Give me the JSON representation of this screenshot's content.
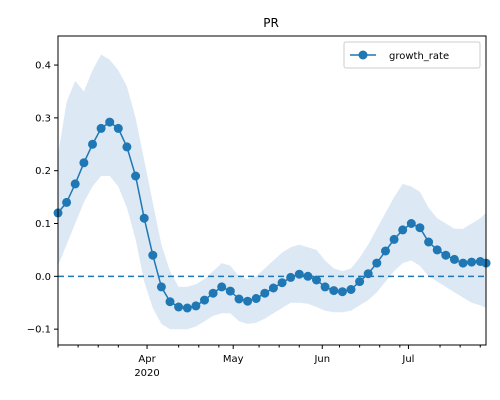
{
  "chart_data": {
    "type": "line",
    "title": "PR",
    "xlabel": "",
    "ylabel": "",
    "x_range": [
      "2020-03-01",
      "2020-07-28"
    ],
    "ylim": [
      -0.13,
      0.455
    ],
    "y_ticks": [
      -0.1,
      0.0,
      0.1,
      0.2,
      0.3,
      0.4
    ],
    "y_tick_labels": [
      "−0.1",
      "0.0",
      "0.1",
      "0.2",
      "0.3",
      "0.4"
    ],
    "x_major_ticks": [
      {
        "date": "2020-04-01",
        "label": "Apr",
        "sublabel": "2020"
      },
      {
        "date": "2020-05-01",
        "label": "May",
        "sublabel": ""
      },
      {
        "date": "2020-06-01",
        "label": "Jun",
        "sublabel": ""
      },
      {
        "date": "2020-07-01",
        "label": "Jul",
        "sublabel": ""
      }
    ],
    "x_minor_ticks": [
      "2020-03-01",
      "2020-03-08",
      "2020-03-15",
      "2020-03-22",
      "2020-04-12",
      "2020-04-19",
      "2020-04-26",
      "2020-05-10",
      "2020-05-17",
      "2020-05-24",
      "2020-06-07",
      "2020-06-14",
      "2020-06-21",
      "2020-06-28",
      "2020-07-12",
      "2020-07-19",
      "2020-07-26"
    ],
    "grid": false,
    "legend_position": "top-right",
    "reference_line": {
      "y": 0.0,
      "style": "dashed",
      "color": "#1f77b4"
    },
    "series": [
      {
        "name": "growth_rate",
        "color": "#1f77b4",
        "band_color": "#dce9f5",
        "marker": "circle",
        "x": [
          "2020-03-01",
          "2020-03-04",
          "2020-03-07",
          "2020-03-10",
          "2020-03-13",
          "2020-03-16",
          "2020-03-19",
          "2020-03-22",
          "2020-03-25",
          "2020-03-28",
          "2020-03-31",
          "2020-04-03",
          "2020-04-06",
          "2020-04-09",
          "2020-04-12",
          "2020-04-15",
          "2020-04-18",
          "2020-04-21",
          "2020-04-24",
          "2020-04-27",
          "2020-04-30",
          "2020-05-03",
          "2020-05-06",
          "2020-05-09",
          "2020-05-12",
          "2020-05-15",
          "2020-05-18",
          "2020-05-21",
          "2020-05-24",
          "2020-05-27",
          "2020-05-30",
          "2020-06-02",
          "2020-06-05",
          "2020-06-08",
          "2020-06-11",
          "2020-06-14",
          "2020-06-17",
          "2020-06-20",
          "2020-06-23",
          "2020-06-26",
          "2020-06-29",
          "2020-07-02",
          "2020-07-05",
          "2020-07-08",
          "2020-07-11",
          "2020-07-14",
          "2020-07-17",
          "2020-07-20",
          "2020-07-23",
          "2020-07-26",
          "2020-07-28"
        ],
        "y": [
          0.12,
          0.14,
          0.175,
          0.215,
          0.25,
          0.28,
          0.292,
          0.28,
          0.245,
          0.19,
          0.11,
          0.04,
          -0.02,
          -0.048,
          -0.058,
          -0.06,
          -0.056,
          -0.045,
          -0.032,
          -0.02,
          -0.028,
          -0.043,
          -0.047,
          -0.042,
          -0.032,
          -0.022,
          -0.012,
          -0.002,
          0.004,
          0.0,
          -0.007,
          -0.02,
          -0.027,
          -0.029,
          -0.025,
          -0.01,
          0.005,
          0.025,
          0.048,
          0.07,
          0.088,
          0.1,
          0.092,
          0.065,
          0.05,
          0.04,
          0.032,
          0.025,
          0.027,
          0.028,
          0.025
        ],
        "lower": [
          0.02,
          0.06,
          0.1,
          0.14,
          0.17,
          0.19,
          0.19,
          0.17,
          0.13,
          0.07,
          -0.01,
          -0.06,
          -0.09,
          -0.1,
          -0.1,
          -0.1,
          -0.095,
          -0.085,
          -0.075,
          -0.07,
          -0.07,
          -0.085,
          -0.09,
          -0.088,
          -0.08,
          -0.07,
          -0.06,
          -0.05,
          -0.05,
          -0.052,
          -0.058,
          -0.065,
          -0.068,
          -0.068,
          -0.065,
          -0.055,
          -0.045,
          -0.03,
          -0.01,
          0.01,
          0.025,
          0.03,
          0.02,
          0.0,
          -0.01,
          -0.02,
          -0.03,
          -0.04,
          -0.05,
          -0.055,
          -0.06
        ],
        "upper": [
          0.23,
          0.33,
          0.37,
          0.35,
          0.39,
          0.42,
          0.41,
          0.39,
          0.36,
          0.3,
          0.22,
          0.14,
          0.06,
          0.01,
          -0.02,
          -0.02,
          -0.015,
          -0.005,
          0.01,
          0.025,
          0.02,
          0.0,
          -0.005,
          0.0,
          0.015,
          0.03,
          0.045,
          0.055,
          0.06,
          0.055,
          0.05,
          0.03,
          0.015,
          0.01,
          0.015,
          0.035,
          0.06,
          0.09,
          0.12,
          0.15,
          0.175,
          0.17,
          0.16,
          0.13,
          0.11,
          0.1,
          0.09,
          0.09,
          0.1,
          0.11,
          0.12
        ]
      }
    ]
  }
}
